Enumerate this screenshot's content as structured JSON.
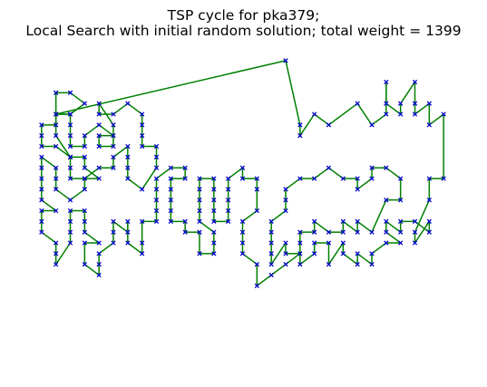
{
  "chart_data": {
    "type": "line",
    "title_line1": "TSP cycle for pka379;",
    "title_line2": "Local Search with initial random solution; total weight = 1399",
    "axes": "hidden",
    "xlim": [
      -1,
      29
    ],
    "ylim": [
      -1,
      29
    ],
    "colors": {
      "edge": "#008000",
      "node": "#0000cc"
    },
    "node_marker": "x",
    "route": [
      [
        17,
        28
      ],
      [
        18,
        22
      ],
      [
        18,
        21
      ],
      [
        19,
        23
      ],
      [
        20,
        22
      ],
      [
        22,
        24
      ],
      [
        23,
        22
      ],
      [
        24,
        23
      ],
      [
        24,
        26
      ],
      [
        24,
        24
      ],
      [
        25,
        23
      ],
      [
        25,
        24
      ],
      [
        26,
        26
      ],
      [
        26,
        24
      ],
      [
        26,
        23
      ],
      [
        27,
        24
      ],
      [
        27,
        22
      ],
      [
        28,
        23
      ],
      [
        28,
        17
      ],
      [
        27,
        17
      ],
      [
        27,
        15
      ],
      [
        26,
        12
      ],
      [
        26,
        11
      ],
      [
        27,
        13
      ],
      [
        27,
        12
      ],
      [
        26,
        13
      ],
      [
        25,
        13
      ],
      [
        25,
        12
      ],
      [
        24,
        13
      ],
      [
        24,
        12
      ],
      [
        25,
        11
      ],
      [
        24,
        11
      ],
      [
        23,
        10
      ],
      [
        23,
        9
      ],
      [
        22,
        10
      ],
      [
        22,
        9
      ],
      [
        21,
        10
      ],
      [
        21,
        11
      ],
      [
        20,
        9
      ],
      [
        20,
        11
      ],
      [
        19,
        11
      ],
      [
        19,
        10
      ],
      [
        18,
        9
      ],
      [
        18,
        11
      ],
      [
        18,
        12
      ],
      [
        19,
        12
      ],
      [
        19,
        13
      ],
      [
        20,
        12
      ],
      [
        21,
        12
      ],
      [
        21,
        13
      ],
      [
        22,
        12
      ],
      [
        22,
        13
      ],
      [
        23,
        12
      ],
      [
        24,
        15
      ],
      [
        25,
        15
      ],
      [
        25,
        17
      ],
      [
        24,
        18
      ],
      [
        23,
        18
      ],
      [
        23,
        17
      ],
      [
        22,
        16
      ],
      [
        22,
        17
      ],
      [
        21,
        17
      ],
      [
        20,
        18
      ],
      [
        19,
        17
      ],
      [
        18,
        17
      ],
      [
        17,
        16
      ],
      [
        17,
        15
      ],
      [
        17,
        14
      ],
      [
        16,
        13
      ],
      [
        16,
        12
      ],
      [
        16,
        11
      ],
      [
        16,
        10
      ],
      [
        16,
        9
      ],
      [
        17,
        11
      ],
      [
        17,
        10
      ],
      [
        18,
        10
      ],
      [
        17,
        9
      ],
      [
        16,
        8
      ],
      [
        15,
        7
      ],
      [
        15,
        9
      ],
      [
        14,
        10
      ],
      [
        14,
        11
      ],
      [
        14,
        12
      ],
      [
        14,
        13
      ],
      [
        15,
        14
      ],
      [
        15,
        16
      ],
      [
        15,
        17
      ],
      [
        14,
        17
      ],
      [
        14,
        18
      ],
      [
        13,
        17
      ],
      [
        13,
        16
      ],
      [
        13,
        15
      ],
      [
        13,
        14
      ],
      [
        13,
        13
      ],
      [
        12,
        13
      ],
      [
        12,
        14
      ],
      [
        12,
        15
      ],
      [
        12,
        16
      ],
      [
        12,
        17
      ],
      [
        11,
        17
      ],
      [
        11,
        16
      ],
      [
        11,
        15
      ],
      [
        11,
        14
      ],
      [
        11,
        13
      ],
      [
        12,
        12
      ],
      [
        12,
        11
      ],
      [
        12,
        10
      ],
      [
        11,
        10
      ],
      [
        11,
        12
      ],
      [
        10,
        12
      ],
      [
        10,
        13
      ],
      [
        9,
        13
      ],
      [
        9,
        14
      ],
      [
        9,
        15
      ],
      [
        9,
        16
      ],
      [
        9,
        17
      ],
      [
        10,
        17
      ],
      [
        10,
        18
      ],
      [
        9,
        18
      ],
      [
        8,
        17
      ],
      [
        8,
        16
      ],
      [
        8,
        15
      ],
      [
        8,
        14
      ],
      [
        8,
        13
      ],
      [
        7,
        13
      ],
      [
        7,
        11
      ],
      [
        7,
        10
      ],
      [
        6,
        11
      ],
      [
        6,
        13
      ],
      [
        6,
        12
      ],
      [
        5,
        13
      ],
      [
        5,
        12
      ],
      [
        5,
        11
      ],
      [
        4,
        10
      ],
      [
        4,
        9
      ],
      [
        4,
        8
      ],
      [
        3,
        9
      ],
      [
        3,
        11
      ],
      [
        4,
        11
      ],
      [
        3,
        12
      ],
      [
        3,
        13
      ],
      [
        3,
        14
      ],
      [
        2,
        14
      ],
      [
        2,
        13
      ],
      [
        2,
        12
      ],
      [
        2,
        11
      ],
      [
        1,
        9
      ],
      [
        1,
        10
      ],
      [
        1,
        11
      ],
      [
        0,
        12
      ],
      [
        0,
        13
      ],
      [
        0,
        14
      ],
      [
        1,
        14
      ],
      [
        0,
        15
      ],
      [
        0,
        16
      ],
      [
        0,
        17
      ],
      [
        0,
        18
      ],
      [
        0,
        19
      ],
      [
        1,
        18
      ],
      [
        1,
        17
      ],
      [
        1,
        16
      ],
      [
        2,
        15
      ],
      [
        3,
        16
      ],
      [
        3,
        17
      ],
      [
        4,
        18
      ],
      [
        5,
        18
      ],
      [
        5,
        19
      ],
      [
        6,
        20
      ],
      [
        6,
        19
      ],
      [
        6,
        18
      ],
      [
        6,
        17
      ],
      [
        7,
        16
      ],
      [
        8,
        18
      ],
      [
        8,
        19
      ],
      [
        8,
        20
      ],
      [
        7,
        20
      ],
      [
        7,
        21
      ],
      [
        7,
        22
      ],
      [
        7,
        23
      ],
      [
        6,
        24
      ],
      [
        5,
        23
      ],
      [
        4,
        23
      ],
      [
        4,
        24
      ],
      [
        5,
        22
      ],
      [
        5,
        20
      ],
      [
        4,
        20
      ],
      [
        4,
        21
      ],
      [
        5,
        21
      ],
      [
        4,
        22
      ],
      [
        3,
        21
      ],
      [
        3,
        20
      ],
      [
        2,
        20
      ],
      [
        2,
        21
      ],
      [
        2,
        22
      ],
      [
        2,
        23
      ],
      [
        1,
        23
      ],
      [
        1,
        22
      ],
      [
        0,
        22
      ],
      [
        0,
        21
      ],
      [
        0,
        20
      ],
      [
        1,
        20
      ],
      [
        2,
        19
      ],
      [
        2,
        18
      ],
      [
        2,
        17
      ],
      [
        3,
        17
      ],
      [
        4,
        17
      ],
      [
        3,
        18
      ],
      [
        3,
        19
      ],
      [
        2,
        19
      ],
      [
        1,
        21
      ],
      [
        1,
        25
      ],
      [
        2,
        25
      ],
      [
        3,
        24
      ],
      [
        2,
        23
      ],
      [
        1,
        23
      ]
    ]
  }
}
